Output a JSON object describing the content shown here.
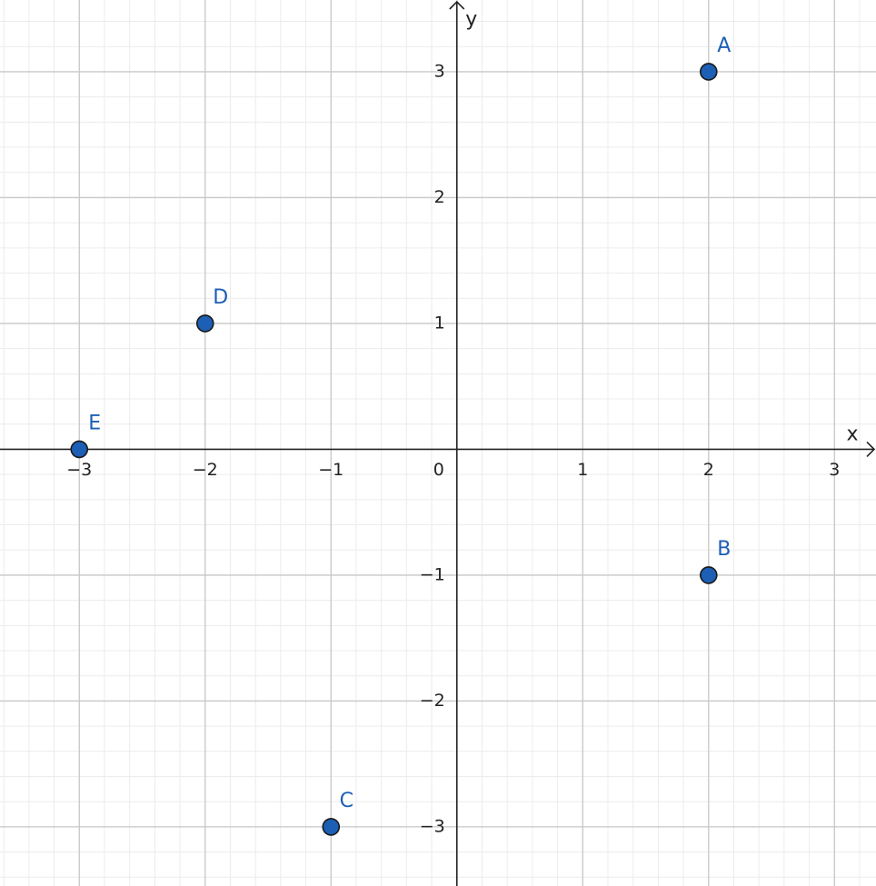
{
  "chart_data": {
    "type": "scatter",
    "x_label": "x",
    "y_label": "y",
    "x": [
      2,
      2,
      -1,
      -2,
      -3
    ],
    "values": [
      3,
      -1,
      -3,
      1,
      0
    ],
    "point_labels": [
      "A",
      "B",
      "C",
      "D",
      "E"
    ],
    "color": "#1c5fb4",
    "xlim": [
      -3.63,
      3.33
    ],
    "ylim": [
      -3.47,
      3.57
    ],
    "xticks": [
      {
        "value": -3,
        "label": "−3"
      },
      {
        "value": -2,
        "label": "−2"
      },
      {
        "value": -1,
        "label": "−1"
      },
      0,
      1,
      2,
      3
    ],
    "yticks": [
      {
        "value": -3,
        "label": "−3"
      },
      {
        "value": -2,
        "label": "−2"
      },
      {
        "value": -1,
        "label": "−1"
      },
      1,
      2,
      3
    ],
    "grid": true,
    "minor_grid": true
  }
}
